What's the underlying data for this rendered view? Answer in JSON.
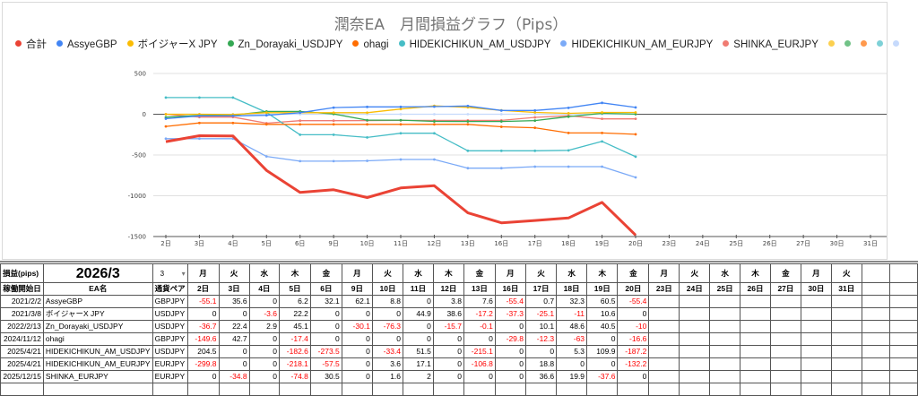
{
  "chart": {
    "title": "潤奈EA　月間損益グラフ（Pips）"
  },
  "chart_data": {
    "type": "line",
    "title": "潤奈EA　月間損益グラフ（Pips）",
    "xlabel": "",
    "ylabel": "",
    "ylim": [
      -1500,
      500
    ],
    "yticks": [
      500,
      0,
      -500,
      -1000,
      -1500
    ],
    "grid": true,
    "legend_position": "top",
    "x": [
      "2日",
      "3日",
      "4日",
      "5日",
      "6日",
      "9日",
      "10日",
      "11日",
      "12日",
      "13日",
      "16日",
      "17日",
      "18日",
      "19日",
      "20日",
      "23日",
      "24日",
      "25日",
      "26日",
      "27日",
      "30日",
      "31日"
    ],
    "series": [
      {
        "name": "合計",
        "color": "#ea4335",
        "width": 3,
        "values": [
          -336.5,
          -263.3,
          -266.9,
          -689.2,
          -958.1,
          -926.1,
          -1022.5,
          -904,
          -877.1,
          -1209.7,
          -1332.1,
          -1303.4,
          -1272,
          -1080.8,
          -1481.9
        ]
      },
      {
        "name": "AssyeGBP",
        "color": "#4285f4",
        "values": [
          -55.1,
          -19.5,
          -19.5,
          -13.3,
          18.8,
          80.9,
          89.7,
          89.7,
          93.5,
          101.1,
          45.7,
          46.4,
          78.7,
          139.2,
          83.8
        ]
      },
      {
        "name": "ボイジャーX JPY",
        "color": "#fbbc04",
        "values": [
          0,
          0,
          -3.6,
          18.6,
          18.6,
          18.6,
          18.6,
          63.5,
          102.1,
          84.9,
          47.6,
          22.5,
          11.5,
          22.1,
          22.1
        ]
      },
      {
        "name": "Zn_Dorayaki_USDJPY",
        "color": "#34a853",
        "values": [
          -36.7,
          -14.3,
          -11.4,
          33.7,
          33.7,
          3.6,
          -72.7,
          -72.7,
          -88.4,
          -88.5,
          -88.5,
          -78.4,
          -29.8,
          10.7,
          0.7
        ]
      },
      {
        "name": "ohagi",
        "color": "#ff6d01",
        "values": [
          -149.6,
          -106.9,
          -106.9,
          -124.3,
          -124.3,
          -124.3,
          -124.3,
          -124.3,
          -124.3,
          -124.3,
          -154.1,
          -166.4,
          -229.4,
          -229.4,
          -246
        ]
      },
      {
        "name": "HIDEKICHIKUN_AM_USDJPY",
        "color": "#46bdc6",
        "values": [
          204.5,
          204.5,
          204.5,
          21.9,
          -251.6,
          -251.6,
          -285,
          -233.5,
          -233.5,
          -448.6,
          -448.6,
          -448.6,
          -443.3,
          -333.4,
          -520.6
        ]
      },
      {
        "name": "HIDEKICHIKUN_AM_EURJPY",
        "color": "#7baaf7",
        "values": [
          -299.8,
          -299.8,
          -299.8,
          -517.9,
          -575.4,
          -575.4,
          -571.8,
          -554.7,
          -554.7,
          -661.5,
          -661.5,
          -642.7,
          -642.7,
          -642.7,
          -774.9
        ]
      },
      {
        "name": "SHINKA_EURJPY",
        "color": "#f07b72",
        "values": [
          0,
          -34.8,
          -34.8,
          -109.6,
          -79.1,
          -79.1,
          -77.5,
          -75.5,
          -75.5,
          -75.5,
          -75.5,
          -38.9,
          -19,
          -56.6,
          -56.6
        ]
      },
      {
        "name": "",
        "color": "#fcd04f",
        "values": []
      },
      {
        "name": "",
        "color": "#71c287",
        "values": []
      },
      {
        "name": "",
        "color": "#ff994d",
        "values": []
      },
      {
        "name": "",
        "color": "#7ed1d7",
        "values": []
      },
      {
        "name": "",
        "color": "#c6dafc",
        "values": [
          0,
          0,
          0,
          0,
          0,
          0,
          0,
          0,
          0,
          0,
          0,
          0,
          0,
          0,
          0
        ]
      }
    ]
  },
  "table": {
    "label": "損益(pips)",
    "month": "2026/3",
    "month_select": "3",
    "select_caret": "▾",
    "headers": {
      "start_date": "稼働開始日",
      "ea_name": "EA名",
      "pair": "通貨ペア"
    },
    "dows": [
      "月",
      "火",
      "水",
      "木",
      "金",
      "月",
      "火",
      "水",
      "木",
      "金",
      "月",
      "火",
      "水",
      "木",
      "金",
      "月",
      "火",
      "水",
      "木",
      "金",
      "月",
      "火",
      "",
      ""
    ],
    "days": [
      "2日",
      "3日",
      "4日",
      "5日",
      "6日",
      "9日",
      "10日",
      "11日",
      "12日",
      "13日",
      "16日",
      "17日",
      "18日",
      "19日",
      "20日",
      "23日",
      "24日",
      "25日",
      "26日",
      "27日",
      "30日",
      "31日",
      "",
      ""
    ],
    "rows": [
      {
        "date": "2021/2/2",
        "ea": "AssyeGBP",
        "pair": "GBPJPY",
        "values": [
          "-55.1",
          "35.6",
          "0",
          "6.2",
          "32.1",
          "62.1",
          "8.8",
          "0",
          "3.8",
          "7.6",
          "-55.4",
          "0.7",
          "32.3",
          "60.5",
          "-55.4"
        ]
      },
      {
        "date": "2021/3/8",
        "ea": "ボイジャーX JPY",
        "pair": "USDJPY",
        "values": [
          "0",
          "0",
          "-3.6",
          "22.2",
          "0",
          "0",
          "0",
          "44.9",
          "38.6",
          "-17.2",
          "-37.3",
          "-25.1",
          "-11",
          "10.6",
          "0"
        ]
      },
      {
        "date": "2022/2/13",
        "ea": "Zn_Dorayaki_USDJPY",
        "pair": "USDJPY",
        "values": [
          "-36.7",
          "22.4",
          "2.9",
          "45.1",
          "0",
          "-30.1",
          "-76.3",
          "0",
          "-15.7",
          "-0.1",
          "0",
          "10.1",
          "48.6",
          "40.5",
          "-10"
        ]
      },
      {
        "date": "2024/11/12",
        "ea": "ohagi",
        "pair": "GBPJPY",
        "values": [
          "-149.6",
          "42.7",
          "0",
          "-17.4",
          "0",
          "0",
          "0",
          "0",
          "0",
          "0",
          "-29.8",
          "-12.3",
          "-63",
          "0",
          "-16.6"
        ]
      },
      {
        "date": "2025/4/21",
        "ea": "HIDEKICHIKUN_AM_USDJPY",
        "pair": "USDJPY",
        "values": [
          "204.5",
          "0",
          "0",
          "-182.6",
          "-273.5",
          "0",
          "-33.4",
          "51.5",
          "0",
          "-215.1",
          "0",
          "0",
          "5.3",
          "109.9",
          "-187.2"
        ]
      },
      {
        "date": "2025/4/21",
        "ea": "HIDEKICHIKUN_AM_EURJPY",
        "pair": "EURJPY",
        "values": [
          "-299.8",
          "0",
          "0",
          "-218.1",
          "-57.5",
          "0",
          "3.6",
          "17.1",
          "0",
          "-106.8",
          "0",
          "18.8",
          "0",
          "0",
          "-132.2"
        ]
      },
      {
        "date": "2025/12/15",
        "ea": "SHINKA_EURJPY",
        "pair": "EURJPY",
        "values": [
          "0",
          "-34.8",
          "0",
          "-74.8",
          "30.5",
          "0",
          "1.6",
          "2",
          "0",
          "0",
          "0",
          "36.6",
          "19.9",
          "-37.6",
          "0"
        ]
      }
    ]
  }
}
